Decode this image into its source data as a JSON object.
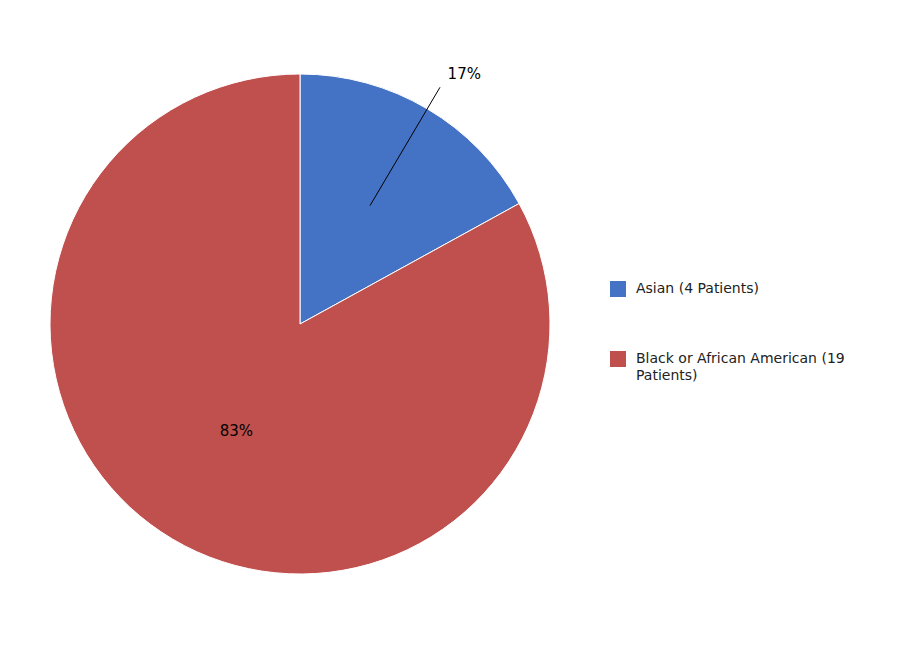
{
  "chart_data": {
    "type": "pie",
    "categories": [
      "Asian (4 Patients)",
      "Black or African American (19\nPatients)"
    ],
    "values": [
      17,
      83
    ],
    "value_labels": [
      "17%",
      "83%"
    ],
    "colors": [
      "#4472C4",
      "#C0504D"
    ],
    "data_labels": true,
    "legend": "right"
  }
}
